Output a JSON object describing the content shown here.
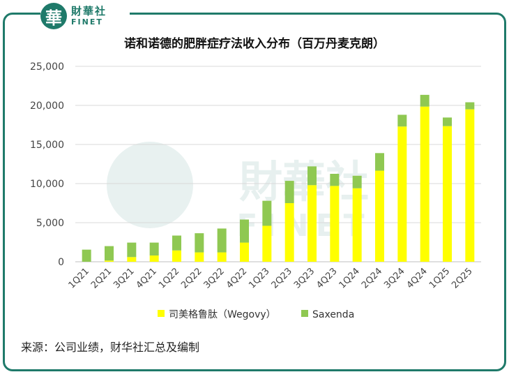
{
  "brand": {
    "name_cn": "財華社",
    "name_en": "FINET",
    "mark": "華"
  },
  "colors": {
    "wegovy": "#ffff00",
    "saxenda": "#8fc852",
    "frame": "#1f7a6a",
    "grid": "#d9d9d9"
  },
  "source_note": "来源：公司业绩，财华社汇总及编制",
  "chart_data": {
    "type": "bar",
    "stacked": true,
    "title": "诺和诺德的肥胖症疗法收入分布（百万丹麦克朗）",
    "xlabel": "",
    "ylabel": "",
    "ylim": [
      0,
      25000
    ],
    "yticks": [
      0,
      5000,
      10000,
      15000,
      20000,
      25000
    ],
    "ytick_labels": [
      "0",
      "5,000",
      "10,000",
      "15,000",
      "20,000",
      "25,000"
    ],
    "grid": true,
    "legend_position": "bottom",
    "categories": [
      "1Q21",
      "2Q21",
      "3Q21",
      "4Q21",
      "1Q22",
      "2Q22",
      "3Q22",
      "4Q22",
      "1Q23",
      "2Q23",
      "3Q23",
      "4Q23",
      "1Q24",
      "2Q24",
      "3Q24",
      "4Q24",
      "1Q25",
      "2Q25"
    ],
    "series": [
      {
        "name": "司美格鲁肽（Wegovy）",
        "color": "#ffff00",
        "values": [
          0,
          150,
          600,
          800,
          1450,
          1200,
          1200,
          2450,
          4600,
          7500,
          9800,
          9700,
          9400,
          11650,
          17300,
          19850,
          17350,
          19500
        ]
      },
      {
        "name": "Saxenda",
        "color": "#8fc852",
        "values": [
          1550,
          1850,
          1850,
          1650,
          1900,
          2450,
          3050,
          2950,
          3200,
          2850,
          2400,
          1550,
          1600,
          2250,
          1500,
          1500,
          1100,
          900
        ]
      }
    ]
  }
}
